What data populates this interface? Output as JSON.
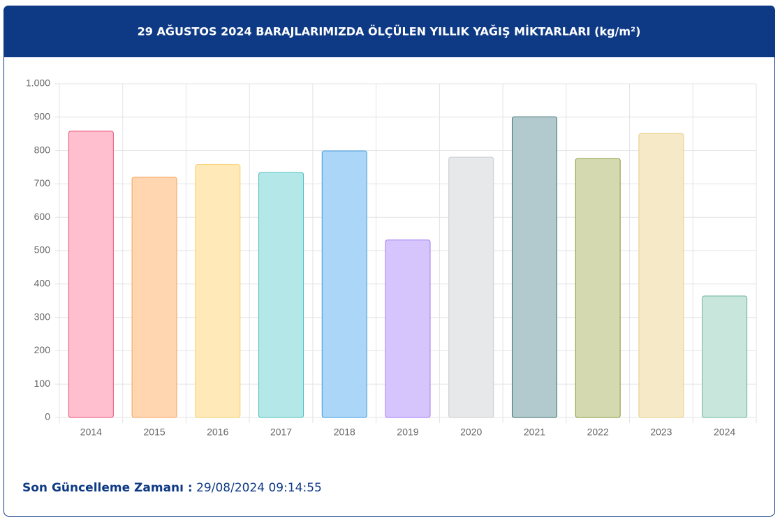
{
  "chart_data": {
    "type": "bar",
    "title": "29 AĞUSTOS 2024 BARAJLARIMIZDA ÖLÇÜLEN YILLIK YAĞIŞ MİKTARLARI (kg/m²)",
    "categories": [
      "2014",
      "2015",
      "2016",
      "2017",
      "2018",
      "2019",
      "2020",
      "2021",
      "2022",
      "2023",
      "2024"
    ],
    "values": [
      858,
      720,
      758,
      734,
      799,
      532,
      780,
      901,
      776,
      851,
      364
    ],
    "colors": [
      "#ffbfcf",
      "#ffd6b0",
      "#ffe9b8",
      "#b4e7e7",
      "#acd6f7",
      "#d6c4fd",
      "#e7e8ea",
      "#b2cace",
      "#d4d9b0",
      "#f6e9c8",
      "#c9e6dd"
    ],
    "border_colors": [
      "#e8527a",
      "#f5a25a",
      "#f7cf6a",
      "#4cbfbf",
      "#3a9be0",
      "#a07ef2",
      "#c9cbcf",
      "#3f6f70",
      "#8a9a3a",
      "#e8cf86",
      "#6ab39f"
    ],
    "ylim": [
      0,
      1000
    ],
    "yticks": [
      0,
      100,
      200,
      300,
      400,
      500,
      600,
      700,
      800,
      900,
      {
        "value": 1000,
        "label": "1.000"
      }
    ],
    "grid": true
  },
  "footer": {
    "label": "Son Güncelleme Zamanı :",
    "value": "29/08/2024 09:14:55"
  }
}
